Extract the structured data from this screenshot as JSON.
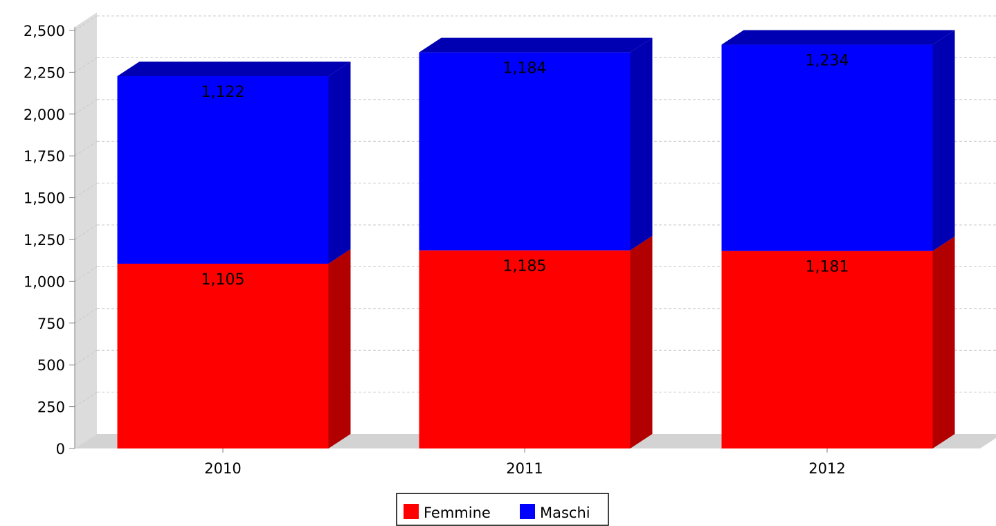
{
  "chart_data": {
    "type": "bar",
    "stacked": true,
    "three_d": true,
    "categories": [
      "2010",
      "2011",
      "2012"
    ],
    "series": [
      {
        "name": "Femmine",
        "values": [
          1105,
          1185,
          1181
        ],
        "color": "#ff0000",
        "side_color": "#b20000"
      },
      {
        "name": "Maschi",
        "values": [
          1122,
          1184,
          1234
        ],
        "color": "#0000ff",
        "side_color": "#0000b2"
      }
    ],
    "ylim": [
      0,
      2500
    ],
    "yticks": [
      0,
      250,
      500,
      750,
      1000,
      1250,
      1500,
      1750,
      2000,
      2250,
      2500
    ],
    "ytick_labels": [
      "0",
      "250",
      "500",
      "750",
      "1,000",
      "1,250",
      "1,500",
      "1,750",
      "2,000",
      "2,250",
      "2,500"
    ],
    "data_labels": [
      [
        "1,105",
        "1,185",
        "1,181"
      ],
      [
        "1,122",
        "1,184",
        "1,234"
      ]
    ],
    "grid": true,
    "legend": "bottom-center"
  }
}
